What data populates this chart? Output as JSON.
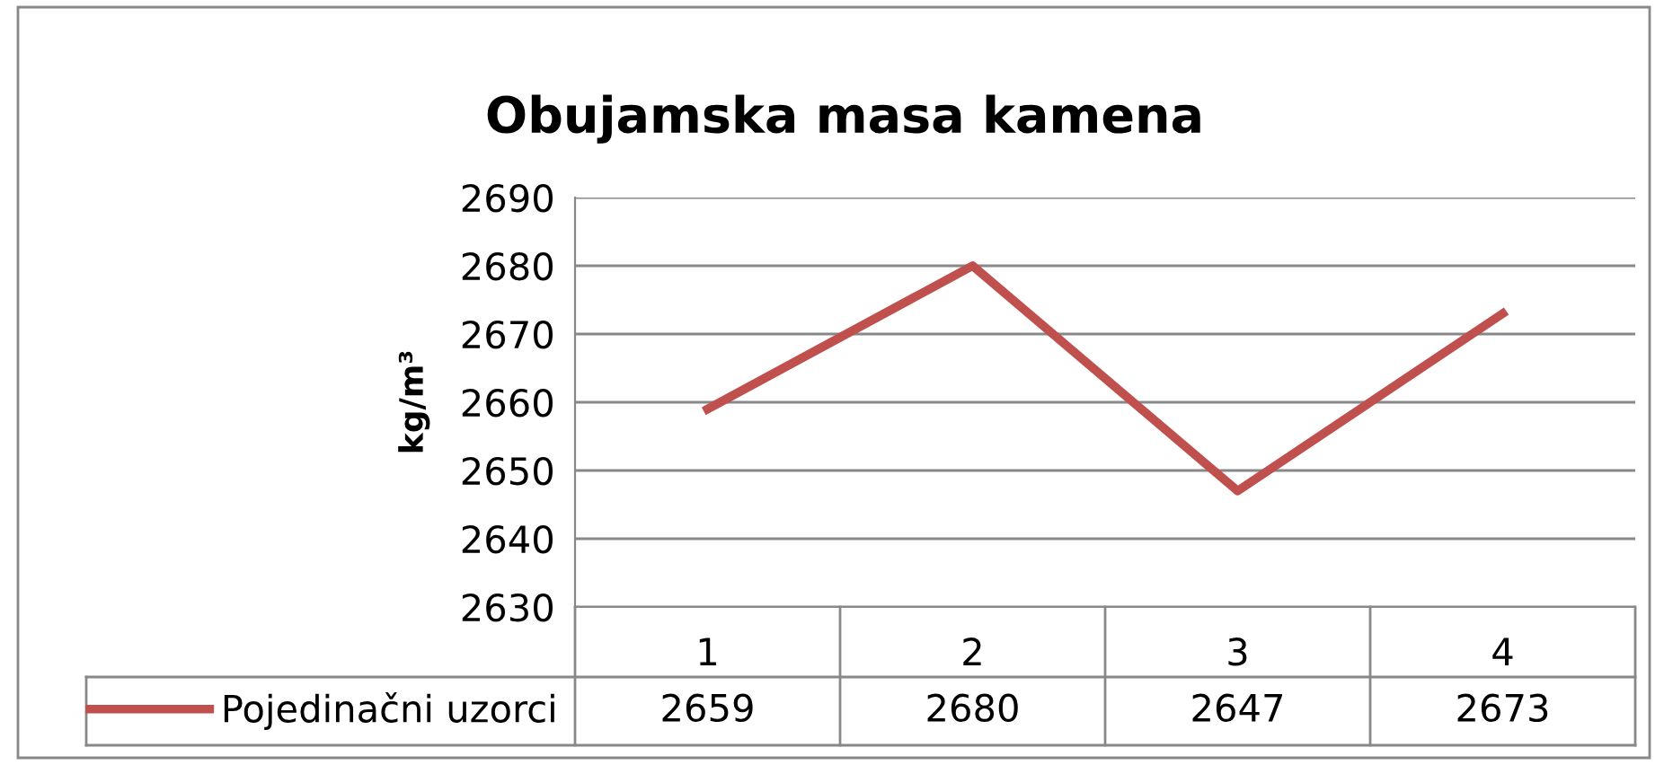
{
  "chart_data": {
    "type": "line",
    "title": "Obujamska masa kamena",
    "ylabel": "kg/m³",
    "categories": [
      "1",
      "2",
      "3",
      "4"
    ],
    "series": [
      {
        "name": "Pojedinačni uzorci",
        "color": "#c0504d",
        "values": [
          2659,
          2680,
          2647,
          2673
        ]
      }
    ],
    "ylim": [
      2630,
      2690
    ],
    "yticks": [
      2630,
      2640,
      2650,
      2660,
      2670,
      2680,
      2690
    ],
    "grid": "y",
    "legend": "bottom",
    "data_labels": true,
    "marker": "none",
    "line_style": "solid"
  }
}
